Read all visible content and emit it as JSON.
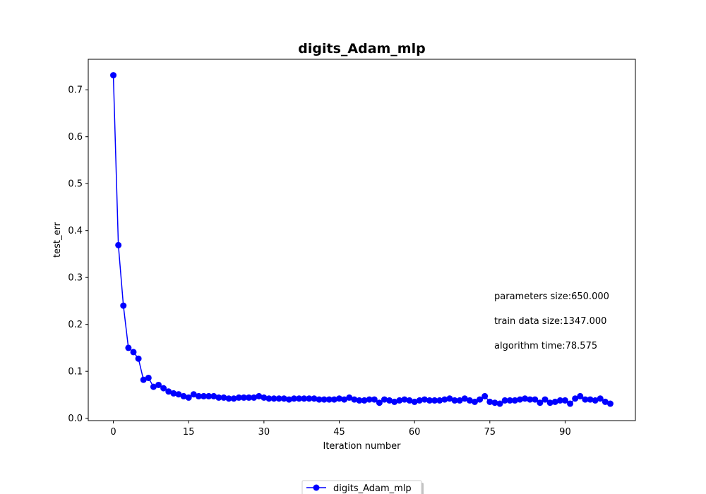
{
  "chart_data": {
    "type": "line",
    "title": "digits_Adam_mlp",
    "xlabel": "Iteration number",
    "ylabel": "test_err",
    "xlim": [
      -5,
      104
    ],
    "ylim": [
      -0.005,
      0.765
    ],
    "xticks": [
      0,
      15,
      30,
      45,
      60,
      75,
      90
    ],
    "yticks": [
      0.0,
      0.1,
      0.2,
      0.3,
      0.4,
      0.5,
      0.6,
      0.7
    ],
    "ytick_labels": [
      "0.0",
      "0.1",
      "0.2",
      "0.3",
      "0.4",
      "0.5",
      "0.6",
      "0.7"
    ],
    "grid": false,
    "legend_position": "bottom-center",
    "annotations": [
      "parameters size:650.000",
      "train data size:1347.000",
      "algorithm time:78.575"
    ],
    "series": [
      {
        "name": "digits_Adam_mlp",
        "color": "#0000ff",
        "marker": "circle",
        "x": [
          0,
          1,
          2,
          3,
          4,
          5,
          6,
          7,
          8,
          9,
          10,
          11,
          12,
          13,
          14,
          15,
          16,
          17,
          18,
          19,
          20,
          21,
          22,
          23,
          24,
          25,
          26,
          27,
          28,
          29,
          30,
          31,
          32,
          33,
          34,
          35,
          36,
          37,
          38,
          39,
          40,
          41,
          42,
          43,
          44,
          45,
          46,
          47,
          48,
          49,
          50,
          51,
          52,
          53,
          54,
          55,
          56,
          57,
          58,
          59,
          60,
          61,
          62,
          63,
          64,
          65,
          66,
          67,
          68,
          69,
          70,
          71,
          72,
          73,
          74,
          75,
          76,
          77,
          78,
          79,
          80,
          81,
          82,
          83,
          84,
          85,
          86,
          87,
          88,
          89,
          90,
          91,
          92,
          93,
          94,
          95,
          96,
          97,
          98,
          99
        ],
        "values": [
          0.731,
          0.369,
          0.24,
          0.15,
          0.141,
          0.127,
          0.082,
          0.086,
          0.067,
          0.071,
          0.064,
          0.057,
          0.053,
          0.051,
          0.047,
          0.044,
          0.051,
          0.047,
          0.047,
          0.047,
          0.047,
          0.044,
          0.044,
          0.042,
          0.042,
          0.044,
          0.044,
          0.044,
          0.044,
          0.047,
          0.044,
          0.042,
          0.042,
          0.042,
          0.042,
          0.04,
          0.042,
          0.042,
          0.042,
          0.042,
          0.042,
          0.04,
          0.04,
          0.04,
          0.04,
          0.042,
          0.04,
          0.044,
          0.04,
          0.038,
          0.038,
          0.04,
          0.04,
          0.033,
          0.04,
          0.038,
          0.035,
          0.038,
          0.04,
          0.038,
          0.035,
          0.038,
          0.04,
          0.038,
          0.038,
          0.038,
          0.04,
          0.042,
          0.038,
          0.038,
          0.042,
          0.038,
          0.035,
          0.04,
          0.047,
          0.035,
          0.033,
          0.031,
          0.038,
          0.038,
          0.038,
          0.04,
          0.042,
          0.04,
          0.04,
          0.033,
          0.04,
          0.033,
          0.035,
          0.038,
          0.038,
          0.031,
          0.042,
          0.047,
          0.04,
          0.04,
          0.038,
          0.042,
          0.035,
          0.031
        ]
      }
    ]
  }
}
